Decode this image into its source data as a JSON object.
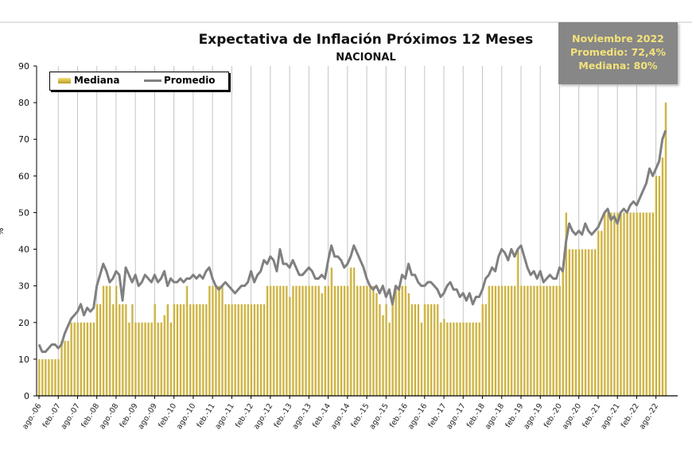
{
  "chart_data": {
    "type": "bar",
    "title": "Expectativa de Inflación Próximos 12 Meses",
    "subtitle": "NACIONAL",
    "ylabel": "%",
    "xlabel": "",
    "ylim": [
      0,
      90
    ],
    "yticks": [
      0,
      10,
      20,
      30,
      40,
      50,
      60,
      70,
      80,
      90
    ],
    "grid": "vertical lines at each semester tick",
    "legend_position": "top-left",
    "x_start": "ago. 2006",
    "x_end": "nov. 2022",
    "x_tick_labels": [
      "ago.-06",
      "feb.-07",
      "ago.-07",
      "feb.-08",
      "ago.-08",
      "feb.-09",
      "ago.-09",
      "feb.-10",
      "ago.-10",
      "feb.-11",
      "ago.-11",
      "feb.-12",
      "ago.-12",
      "feb.-13",
      "ago.-13",
      "feb.-14",
      "ago.-14",
      "feb.-15",
      "ago.-15",
      "feb.-16",
      "ago.-16",
      "feb.-17",
      "ago.-17",
      "feb.-18",
      "ago.-18",
      "feb.-19",
      "ago.-19",
      "feb.-20",
      "ago.-20",
      "feb.-21",
      "ago.-21",
      "feb.-22",
      "ago.-22"
    ],
    "series": [
      {
        "name": "Mediana",
        "type": "bar",
        "color": "#cfb23c",
        "values": [
          10,
          10,
          10,
          10,
          10,
          10,
          10,
          15,
          15,
          15,
          20,
          20,
          20,
          20,
          20,
          20,
          20,
          20,
          25,
          25,
          30,
          30,
          30,
          25,
          30,
          25,
          25,
          25,
          20,
          25,
          20,
          20,
          20,
          20,
          20,
          20,
          25,
          20,
          20,
          22,
          25,
          20,
          25,
          25,
          25,
          25,
          30,
          25,
          25,
          25,
          25,
          25,
          25,
          30,
          30,
          30,
          30,
          30,
          25,
          25,
          25,
          25,
          25,
          25,
          25,
          25,
          25,
          25,
          25,
          25,
          25,
          30,
          30,
          30,
          30,
          30,
          30,
          30,
          27,
          30,
          30,
          30,
          30,
          30,
          30,
          30,
          30,
          30,
          28,
          30,
          30,
          35,
          30,
          30,
          30,
          30,
          30,
          35,
          35,
          30,
          30,
          30,
          30,
          30,
          30,
          28,
          25,
          22,
          25,
          20,
          25,
          30,
          30,
          30,
          30,
          28,
          25,
          25,
          25,
          20,
          25,
          25,
          25,
          25,
          25,
          20,
          21,
          20,
          20,
          20,
          20,
          20,
          20,
          20,
          20,
          20,
          20,
          20,
          25,
          25,
          30,
          30,
          30,
          30,
          30,
          30,
          30,
          30,
          30,
          40,
          30,
          30,
          30,
          30,
          30,
          30,
          30,
          30,
          30,
          30,
          30,
          30,
          30,
          35,
          50,
          40,
          40,
          40,
          40,
          40,
          40,
          40,
          40,
          40,
          45,
          45,
          50,
          50,
          50,
          50,
          50,
          50,
          50,
          50,
          50,
          50,
          50,
          50,
          50,
          50,
          50,
          50,
          60,
          60,
          65,
          80
        ]
      },
      {
        "name": "Promedio",
        "type": "line",
        "color": "#808080",
        "values": [
          14,
          12,
          12,
          13,
          14,
          14,
          13,
          14,
          17,
          19,
          21,
          22,
          23,
          25,
          22,
          24,
          23,
          24,
          30,
          33,
          36,
          34,
          31,
          32,
          34,
          33,
          26,
          35,
          33,
          31,
          33,
          30,
          31,
          33,
          32,
          31,
          33,
          31,
          32,
          34,
          30,
          32,
          31,
          31,
          32,
          31,
          32,
          32,
          33,
          32,
          33,
          32,
          34,
          35,
          32,
          30,
          29,
          30,
          31,
          30,
          29,
          28,
          29,
          30,
          30,
          31,
          34,
          31,
          33,
          34,
          37,
          36,
          38,
          37,
          34,
          40,
          36,
          36,
          35,
          37,
          35,
          33,
          33,
          34,
          35,
          34,
          32,
          32,
          33,
          32,
          37,
          41,
          38,
          38,
          37,
          35,
          36,
          38,
          41,
          39,
          37,
          35,
          32,
          30,
          29,
          30,
          28,
          30,
          27,
          29,
          25,
          30,
          29,
          33,
          32,
          36,
          33,
          33,
          31,
          30,
          30,
          31,
          31,
          30,
          29,
          27,
          28,
          30,
          31,
          29,
          29,
          27,
          28,
          26,
          28,
          25,
          27,
          27,
          29,
          32,
          33,
          35,
          34,
          38,
          40,
          39,
          37,
          40,
          38,
          40,
          41,
          38,
          35,
          33,
          34,
          32,
          34,
          31,
          32,
          33,
          32,
          32,
          35,
          34,
          42,
          47,
          45,
          44,
          45,
          44,
          47,
          45,
          44,
          45,
          46,
          48,
          50,
          51,
          48,
          49,
          47,
          50,
          51,
          50,
          52,
          53,
          52,
          54,
          56,
          58,
          62,
          60,
          62,
          64,
          70,
          72.4
        ]
      }
    ]
  },
  "infobox": {
    "line1": "Noviembre 2022",
    "line2": "Promedio: 72,4%",
    "line3": "Mediana: 80%"
  },
  "legend": {
    "bar_label": "Mediana",
    "line_label": "Promedio"
  }
}
